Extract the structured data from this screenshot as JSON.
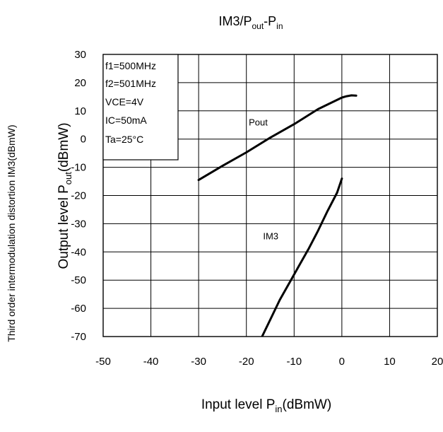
{
  "chart_data": {
    "type": "line",
    "title": {
      "base": "IM3/P",
      "sub1": "out",
      "mid": "-P",
      "sub2": "in"
    },
    "xlabel": {
      "pre": "Input level P",
      "sub": "in",
      "post": "(dBmW)"
    },
    "ylabel": {
      "pre": "Output level P",
      "sub": "out",
      "post": "(dBmW)"
    },
    "ylabel_secondary": "Third order intermodulation distortion IM3(dBmW)",
    "xlim": [
      -50,
      20
    ],
    "ylim": [
      -70,
      30
    ],
    "x_ticks": [
      -50,
      -40,
      -30,
      -20,
      -10,
      0,
      10,
      20
    ],
    "y_ticks": [
      30,
      20,
      10,
      0,
      -10,
      -20,
      -30,
      -40,
      -50,
      -60,
      -70
    ],
    "grid": true,
    "conditions": [
      "f1=500MHz",
      "f2=501MHz",
      "VCE=4V",
      "IC=50mA",
      "Ta=25°C"
    ],
    "series": [
      {
        "name": "Pout",
        "x": [
          -30,
          -25,
          -20,
          -15,
          -10,
          -5,
          0,
          1,
          2,
          3
        ],
        "y": [
          -14.5,
          -9.5,
          -4.7,
          0.5,
          5.3,
          10.6,
          14.7,
          15.2,
          15.5,
          15.4
        ]
      },
      {
        "name": "IM3",
        "x": [
          -17,
          -15,
          -13,
          -11,
          -9,
          -7,
          -5,
          -3,
          -1,
          0
        ],
        "y": [
          -71,
          -64,
          -57,
          -51,
          -45,
          -39,
          -32.5,
          -25.5,
          -19,
          -14
        ]
      }
    ]
  }
}
